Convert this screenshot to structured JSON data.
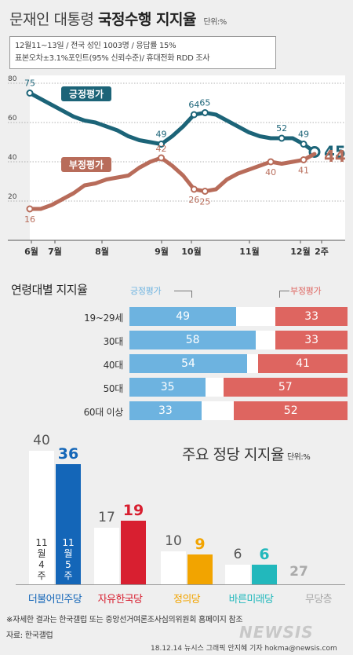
{
  "header": {
    "title_normal": "문재인 대통령",
    "title_bold": "국정수행 지지율",
    "unit": "단위:%",
    "info_line1": "12월11~13일 / 전국 성인 1003명 / 응답률 15%",
    "info_line2": "표본오차±3.1%포인트(95% 신뢰수준)/ 휴대전화 RDD 조사"
  },
  "chart_data": [
    {
      "type": "line",
      "ylim": [
        0,
        80
      ],
      "yticks": [
        "20",
        "40",
        "60",
        "80"
      ],
      "x_labels": [
        "6월",
        "7월",
        "8월",
        "9월",
        "10월",
        "11월",
        "12월",
        "2주"
      ],
      "series": [
        {
          "name": "긍정평가",
          "color": "#1c6478",
          "values": [
            75,
            72,
            69,
            66,
            63,
            61,
            60,
            58,
            56,
            53,
            51,
            50,
            49,
            53,
            58,
            64,
            65,
            64,
            61,
            58,
            55,
            53,
            52,
            52,
            52,
            49,
            45
          ],
          "labels": [
            {
              "i": 0,
              "text": "75"
            },
            {
              "i": 12,
              "text": "49"
            },
            {
              "i": 15,
              "text": "64"
            },
            {
              "i": 16,
              "text": "65"
            },
            {
              "i": 23,
              "text": "52"
            },
            {
              "i": 25,
              "text": "49"
            },
            {
              "i": 26,
              "text": "45"
            }
          ]
        },
        {
          "name": "부정평가",
          "color": "#b86c5a",
          "values": [
            16,
            16,
            18,
            21,
            24,
            28,
            29,
            31,
            32,
            33,
            37,
            40,
            42,
            38,
            33,
            26,
            25,
            26,
            31,
            34,
            36,
            38,
            40,
            39,
            40,
            41,
            44
          ],
          "labels": [
            {
              "i": 0,
              "text": "16"
            },
            {
              "i": 12,
              "text": "42"
            },
            {
              "i": 15,
              "text": "26"
            },
            {
              "i": 16,
              "text": "25"
            },
            {
              "i": 22,
              "text": "40"
            },
            {
              "i": 25,
              "text": "41"
            },
            {
              "i": 26,
              "text": "44"
            }
          ]
        }
      ]
    },
    {
      "type": "bar",
      "title": "연령대별 지지율",
      "legend": [
        "긍정평가",
        "부정평가"
      ],
      "categories": [
        "19~29세",
        "30대",
        "40대",
        "50대",
        "60대 이상"
      ],
      "series": [
        {
          "name": "긍정평가",
          "color": "#6db3e0",
          "values": [
            49,
            58,
            54,
            35,
            33
          ]
        },
        {
          "name": "부정평가",
          "color": "#de6560",
          "values": [
            33,
            33,
            41,
            57,
            52
          ]
        }
      ]
    },
    {
      "type": "bar",
      "title": "주요 정당 지지율",
      "unit": "단위:%",
      "categories": [
        "더불어민주당",
        "자유한국당",
        "정의당",
        "바른미래당",
        "무당층"
      ],
      "series": [
        {
          "name": "11월 4주",
          "values": [
            40,
            17,
            10,
            6,
            null
          ]
        },
        {
          "name": "11월 5주",
          "values": [
            36,
            19,
            9,
            6,
            27
          ]
        }
      ],
      "colors": [
        "#1466b8",
        "#d81f30",
        "#f2a400",
        "#22b8bc",
        "#aaaaaa"
      ],
      "week_label_a": [
        "11",
        "월",
        "4",
        "주"
      ],
      "week_label_b": [
        "11",
        "월",
        "5",
        "주"
      ]
    }
  ],
  "footer": {
    "note": "※자세한 결과는 한국갤럽 또는 중앙선거여론조사심의위원회 홈페이지 참조",
    "source": "자료: 한국갤럽",
    "credit": "18.12.14 뉴시스 그래픽 안지혜 기자 hokma@newsis.com",
    "logo": "NEWSIS"
  }
}
